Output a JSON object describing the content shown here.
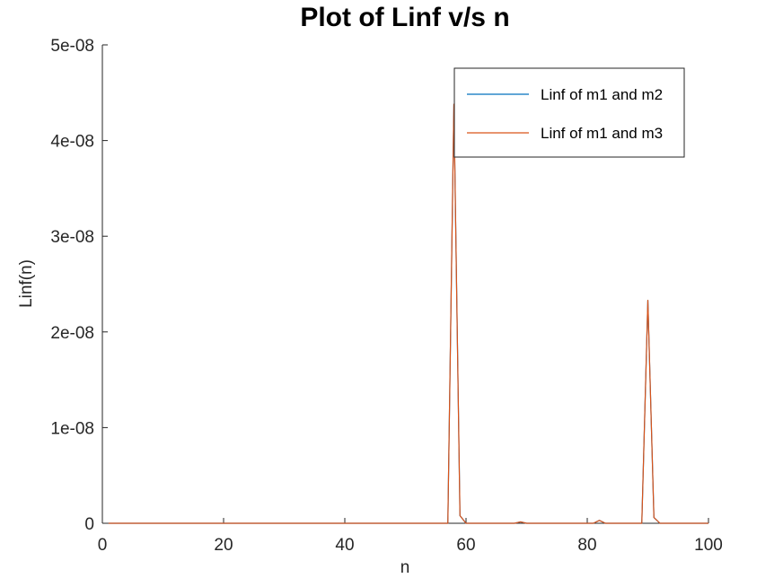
{
  "chart_data": {
    "type": "line",
    "title": "Plot of Linf v/s n",
    "xlabel": "n",
    "ylabel": "Linf(n)",
    "xlim": [
      0,
      100
    ],
    "ylim": [
      0,
      5e-08
    ],
    "xticks": [
      0,
      20,
      40,
      60,
      80,
      100
    ],
    "xtick_labels": [
      "0",
      "20",
      "40",
      "60",
      "80",
      "100"
    ],
    "yticks": [
      0,
      1e-08,
      2e-08,
      3e-08,
      4e-08,
      5e-08
    ],
    "ytick_labels": [
      "0",
      "1e-08",
      "2e-08",
      "3e-08",
      "4e-08",
      "5e-08"
    ],
    "grid": false,
    "legend_position": "top-right",
    "series": [
      {
        "name": "Linf of m1 and m2",
        "color": "#0072bd",
        "x": [
          1,
          10,
          20,
          30,
          40,
          50,
          57,
          58,
          59,
          60,
          68,
          69,
          70,
          81,
          82,
          83,
          89,
          90,
          91,
          92,
          100
        ],
        "y": [
          0,
          0,
          0,
          0,
          0,
          0,
          0,
          4.38e-08,
          8e-10,
          0,
          0,
          1.5e-10,
          0,
          0,
          3e-10,
          0,
          0,
          2.33e-08,
          6e-10,
          0,
          0
        ]
      },
      {
        "name": "Linf of m1 and m3",
        "color": "#d95319",
        "x": [
          1,
          10,
          20,
          30,
          40,
          50,
          57,
          58,
          59,
          60,
          68,
          69,
          70,
          81,
          82,
          83,
          89,
          90,
          91,
          92,
          100
        ],
        "y": [
          0,
          0,
          0,
          0,
          0,
          0,
          0,
          4.38e-08,
          8e-10,
          0,
          0,
          1.5e-10,
          0,
          0,
          3e-10,
          0,
          0,
          2.33e-08,
          6e-10,
          0,
          0
        ]
      }
    ]
  }
}
